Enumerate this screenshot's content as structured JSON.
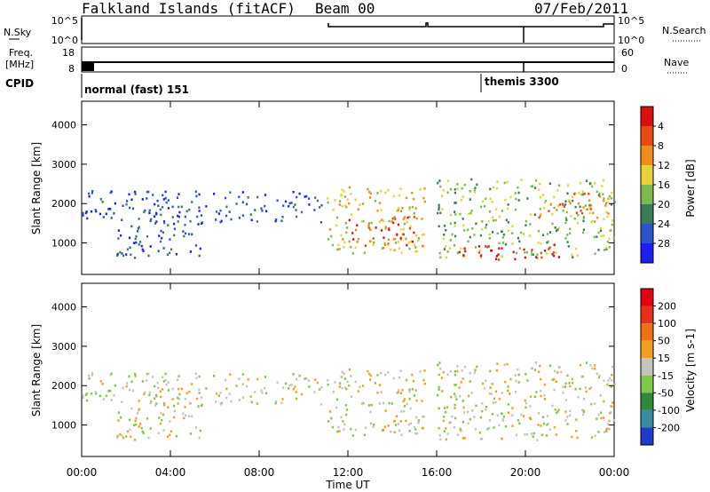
{
  "header": {
    "station": "Falkland Islands (fitACF)",
    "beam": "Beam 00",
    "date": "07/Feb/2011"
  },
  "panels": {
    "nsky": {
      "left_label": "N.Sky",
      "ticks": [
        "10^5",
        "10^0"
      ],
      "right_label": "N.Search",
      "right_ticks": [
        "10^5",
        "10^0"
      ]
    },
    "freq": {
      "left_label_1": "Freq.",
      "left_label_2": "[MHz]",
      "ticks": [
        "18",
        "8"
      ],
      "right_label": "Nave",
      "right_ticks": [
        "60",
        "0"
      ]
    },
    "cpid": {
      "label": "CPID",
      "segments": [
        "normal (fast) 151",
        "themis 3300"
      ]
    }
  },
  "chart_data": [
    {
      "type": "heatmap",
      "quantity": "Power",
      "ylabel": "Slant Range [km]",
      "yticks": [
        1000,
        2000,
        3000,
        4000
      ],
      "ylim": [
        200,
        4600
      ],
      "xlabel": "Time UT",
      "xticks": [
        "00:00",
        "04:00",
        "08:00",
        "12:00",
        "16:00",
        "20:00",
        "00:00"
      ],
      "colorbar": {
        "label": "Power [dB]",
        "ticks": [
          "4",
          "8",
          "12",
          "16",
          "20",
          "24",
          "28"
        ],
        "colors": [
          "#1e1ef0",
          "#2a55c8",
          "#3b7a5a",
          "#7bbb4e",
          "#e8d23a",
          "#f08c18",
          "#e84a10",
          "#d81010"
        ]
      },
      "echo_regions": [
        {
          "t0": 0.0,
          "t1": 11.0,
          "r0": 1500,
          "r1": 2300,
          "level": 1
        },
        {
          "t0": 1.5,
          "t1": 5.5,
          "r0": 600,
          "r1": 1500,
          "level": 1
        },
        {
          "t0": 11.0,
          "t1": 15.5,
          "r0": 700,
          "r1": 2400,
          "level": 4
        },
        {
          "t0": 12.0,
          "t1": 15.0,
          "r0": 900,
          "r1": 1700,
          "level": 6
        },
        {
          "t0": 16.0,
          "t1": 24.0,
          "r0": 600,
          "r1": 2600,
          "level": 3
        },
        {
          "t0": 16.5,
          "t1": 21.5,
          "r0": 550,
          "r1": 950,
          "level": 7
        },
        {
          "t0": 20.5,
          "t1": 24.0,
          "r0": 1600,
          "r1": 2300,
          "level": 5
        }
      ]
    },
    {
      "type": "heatmap",
      "quantity": "Velocity",
      "ylabel": "Slant Range [km]",
      "yticks": [
        1000,
        2000,
        3000,
        4000
      ],
      "ylim": [
        200,
        4600
      ],
      "xlabel": "Time UT",
      "xticks": [
        "00:00",
        "04:00",
        "08:00",
        "12:00",
        "16:00",
        "20:00",
        "00:00"
      ],
      "colorbar": {
        "label": "Velocity [m s-1]",
        "ticks": [
          "200",
          "100",
          "50",
          "15",
          "-15",
          "-50",
          "-100",
          "-200"
        ],
        "colors": [
          "#1e3cc8",
          "#3c8ca0",
          "#2e8a3a",
          "#7cc84a",
          "#c4c4bc",
          "#f0a020",
          "#f07010",
          "#e83018",
          "#e00010"
        ]
      },
      "echo_regions": [
        {
          "t0": 0.0,
          "t1": 11.0,
          "r0": 1500,
          "r1": 2300,
          "level": 4
        },
        {
          "t0": 1.5,
          "t1": 5.5,
          "r0": 600,
          "r1": 1500,
          "level": 4
        },
        {
          "t0": 11.0,
          "t1": 15.5,
          "r0": 700,
          "r1": 2400,
          "level": 4
        },
        {
          "t0": 16.0,
          "t1": 24.0,
          "r0": 600,
          "r1": 2600,
          "level": 4
        }
      ]
    }
  ]
}
